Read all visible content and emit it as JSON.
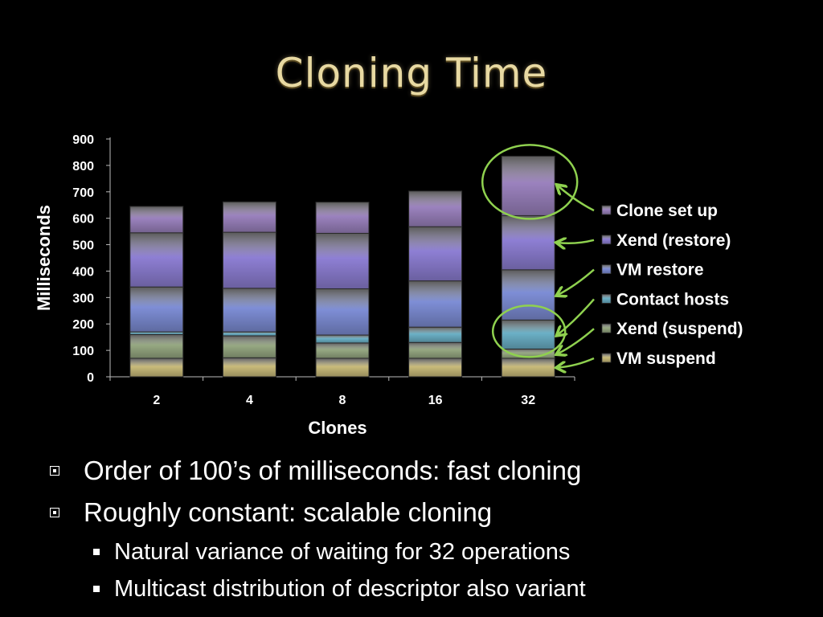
{
  "slide": {
    "title": "Cloning Time",
    "bullets": [
      {
        "text": "Order of 100’s of milliseconds: fast cloning",
        "sub": []
      },
      {
        "text": "Roughly constant: scalable cloning",
        "sub": [
          "Natural variance of waiting for 32 operations",
          "Multicast distribution of descriptor also variant"
        ]
      }
    ]
  },
  "chart_data": {
    "type": "bar",
    "stacked": true,
    "categories": [
      "2",
      "4",
      "8",
      "16",
      "32"
    ],
    "series": [
      {
        "name": "VM suspend",
        "color": "#c9bb7a",
        "values": [
          70,
          72,
          70,
          70,
          70
        ]
      },
      {
        "name": "Xend (suspend)",
        "color": "#96a882",
        "values": [
          90,
          83,
          58,
          60,
          35
        ]
      },
      {
        "name": "Contact hosts",
        "color": "#6bb0c6",
        "values": [
          10,
          15,
          30,
          58,
          110
        ]
      },
      {
        "name": "VM restore",
        "color": "#7e8ed6",
        "values": [
          170,
          165,
          175,
          175,
          190
        ]
      },
      {
        "name": "Xend (restore)",
        "color": "#8e7fd4",
        "values": [
          205,
          212,
          210,
          205,
          205
        ]
      },
      {
        "name": "Clone set up",
        "color": "#9b82be",
        "values": [
          100,
          115,
          118,
          135,
          225
        ]
      }
    ],
    "xlabel": "Clones",
    "ylabel": "Milliseconds",
    "ylim": [
      0,
      900
    ],
    "yticks": [
      0,
      100,
      200,
      300,
      400,
      500,
      600,
      700,
      800,
      900
    ],
    "legend": "right",
    "grid": false,
    "annotation_color": "#8fd14f"
  }
}
